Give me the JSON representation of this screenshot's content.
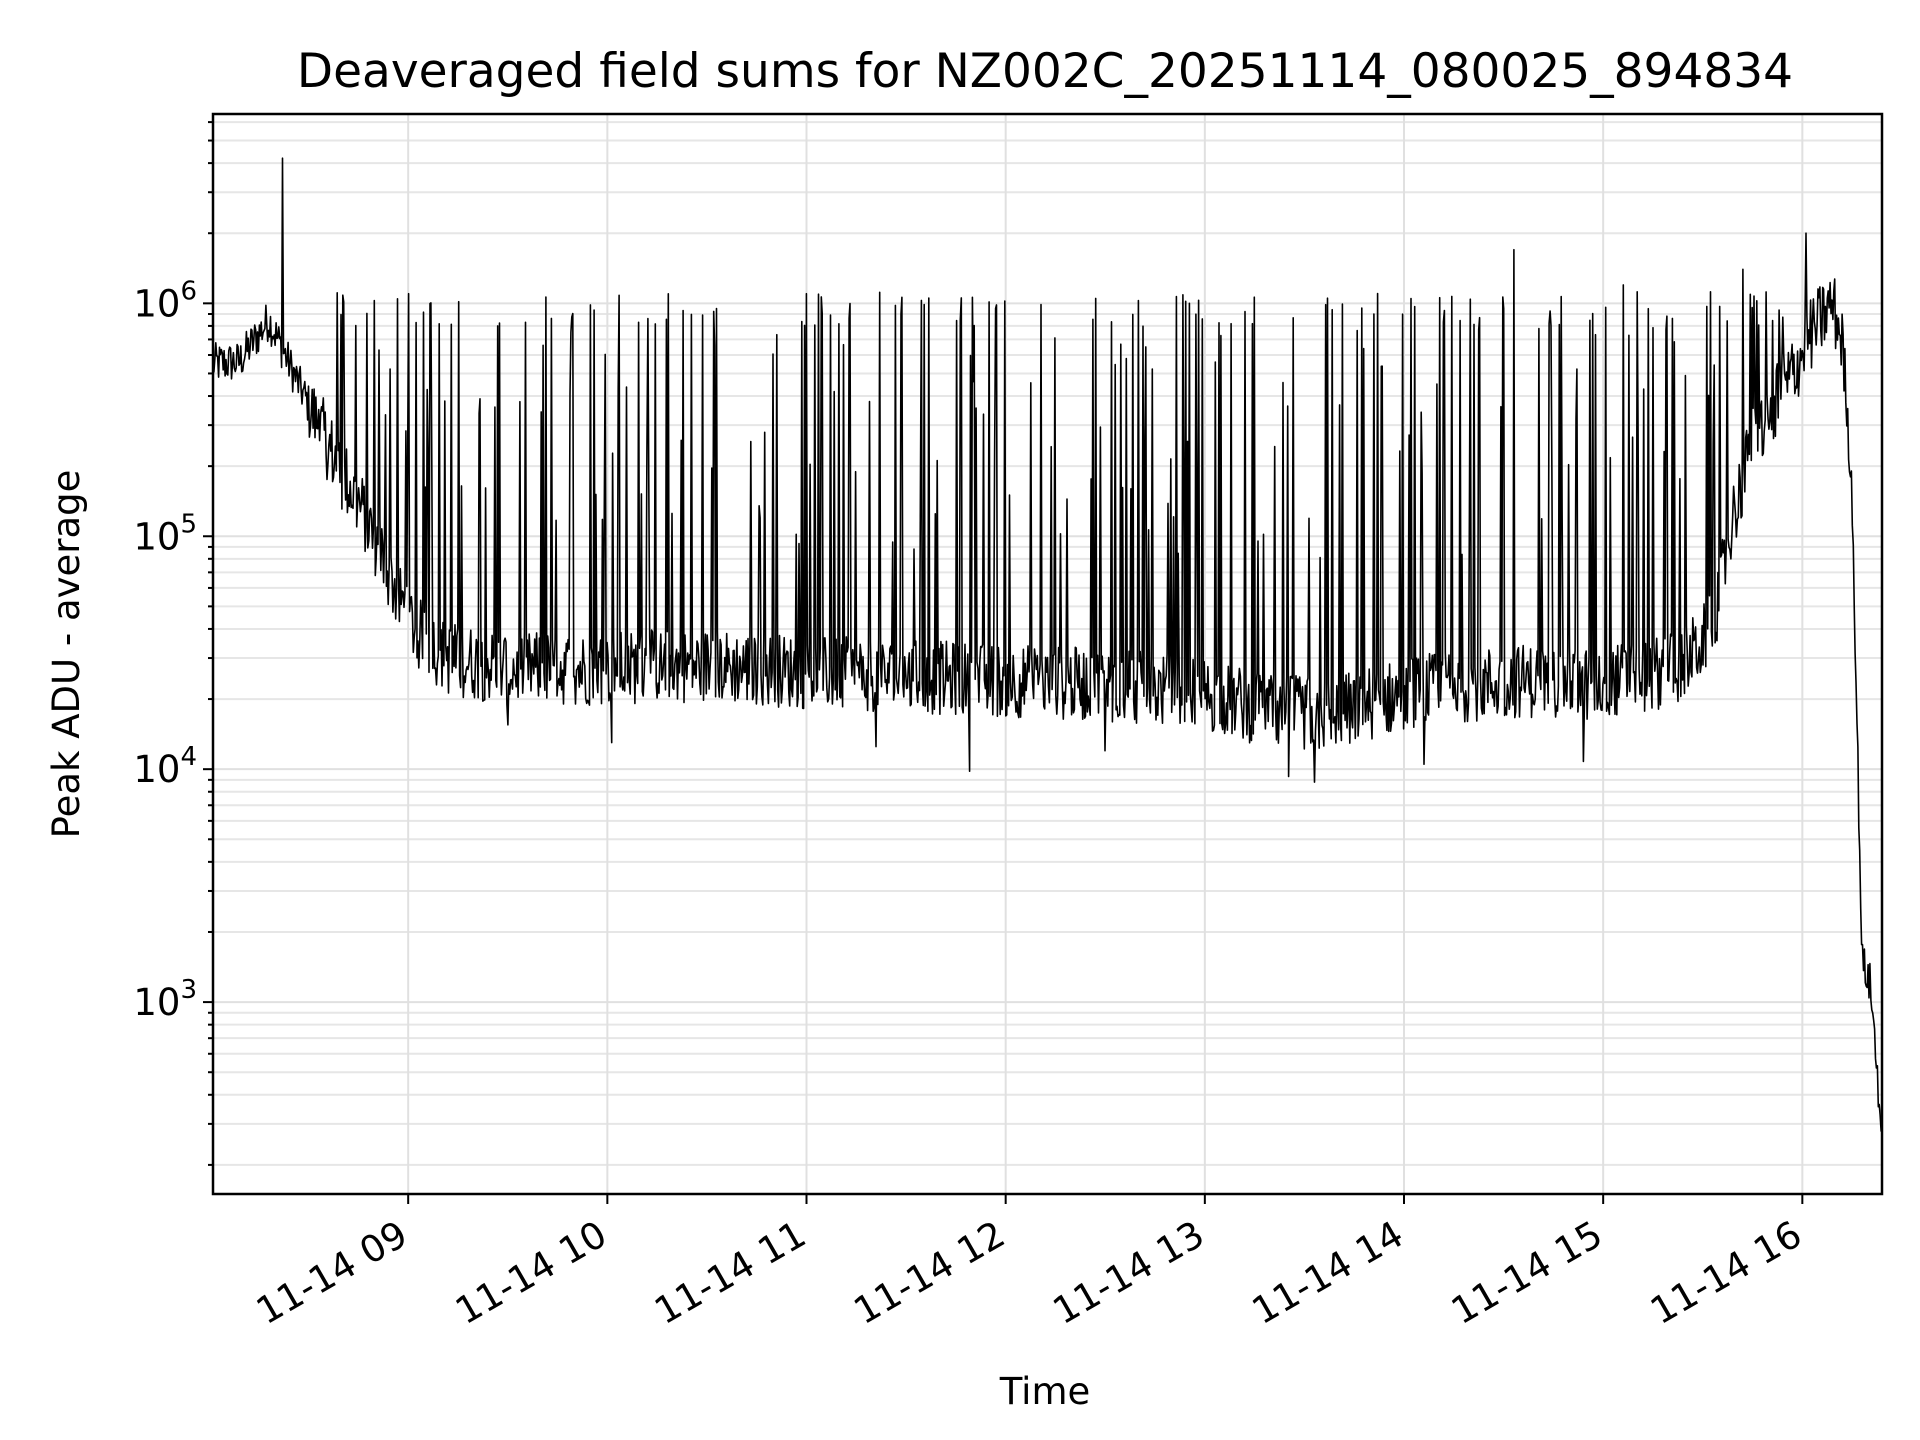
{
  "chart_data": {
    "type": "line",
    "title": "Deaveraged field sums for NZ002C_20251114_080025_894834",
    "xlabel": "Time",
    "ylabel": "Peak ADU - average",
    "yscale": "log",
    "ylim": [
      150,
      6500000
    ],
    "xlim_hours": [
      8.02,
      16.4
    ],
    "grid": "on",
    "line_color": "#000000",
    "x_ticks": [
      {
        "label": "11-14 09",
        "hour": 9
      },
      {
        "label": "11-14 10",
        "hour": 10
      },
      {
        "label": "11-14 11",
        "hour": 11
      },
      {
        "label": "11-14 12",
        "hour": 12
      },
      {
        "label": "11-14 13",
        "hour": 13
      },
      {
        "label": "11-14 14",
        "hour": 14
      },
      {
        "label": "11-14 15",
        "hour": 15
      },
      {
        "label": "11-14 16",
        "hour": 16
      }
    ],
    "y_ticks": [
      {
        "base": "10",
        "exp": "3",
        "value": 1000
      },
      {
        "base": "10",
        "exp": "4",
        "value": 10000
      },
      {
        "base": "10",
        "exp": "5",
        "value": 100000
      },
      {
        "base": "10",
        "exp": "6",
        "value": 1000000
      }
    ],
    "series": [
      {
        "name": "Deaveraged field sum",
        "baseline": {
          "hours": [
            8.02,
            8.15,
            8.3,
            8.45,
            8.55,
            8.65,
            8.75,
            8.85,
            8.95,
            9.05,
            9.2,
            9.5,
            10.0,
            10.5,
            11.0,
            11.5,
            12.0,
            12.5,
            13.0,
            13.3,
            13.6,
            14.0,
            14.3,
            14.6,
            14.9,
            15.2,
            15.4,
            15.55,
            15.65,
            15.75,
            15.85,
            15.95,
            16.05,
            16.15,
            16.2,
            16.25,
            16.3,
            16.34,
            16.37,
            16.4
          ],
          "values": [
            550000,
            560000,
            850000,
            450000,
            300000,
            200000,
            140000,
            90000,
            55000,
            38000,
            30000,
            27000,
            27000,
            28000,
            26000,
            25000,
            24000,
            23000,
            21000,
            18000,
            17000,
            21000,
            23000,
            24000,
            23000,
            25000,
            28000,
            40000,
            120000,
            250000,
            350000,
            500000,
            750000,
            1000000,
            700000,
            150000,
            1500,
            1200,
            600,
            250
          ]
        },
        "spike_peaks": {
          "description": "Frequent upward spikes between 11-14 09 and 11-14 16",
          "hours": [
            8.37,
            9.0,
            9.45,
            10.02,
            10.55,
            11.0,
            11.35,
            11.95,
            12.45,
            12.92,
            13.85,
            14.55,
            15.1,
            15.7,
            16.02
          ],
          "values": [
            4200000,
            1100000,
            800000,
            1150000,
            950000,
            1100000,
            1050000,
            950000,
            1050000,
            1000000,
            900000,
            1700000,
            1200000,
            1400000,
            2000000
          ]
        },
        "dip_minima": {
          "hours": [
            8.55,
            9.5,
            10.02,
            11.35,
            11.82,
            12.5,
            13.42,
            13.55,
            14.1,
            14.9
          ],
          "values": [
            350000,
            15500,
            13000,
            12500,
            9800,
            12000,
            9300,
            8800,
            10500,
            10800
          ]
        }
      }
    ]
  }
}
